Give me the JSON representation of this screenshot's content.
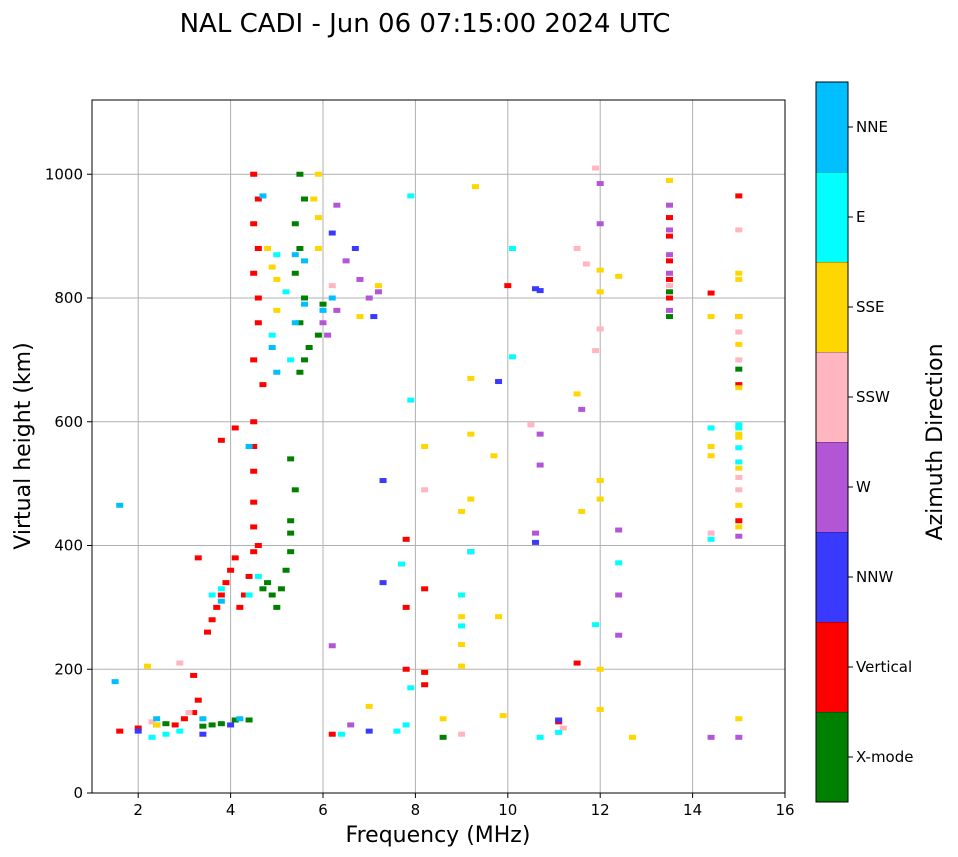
{
  "chart_data": {
    "type": "scatter",
    "title": "NAL CADI - Jun 06 07:15:00 2024 UTC",
    "xlabel": "Frequency (MHz)",
    "ylabel": "Virtual height (km)",
    "xlim": [
      1,
      16
    ],
    "ylim": [
      0,
      1120
    ],
    "xticks": [
      2,
      4,
      6,
      8,
      10,
      12,
      14,
      16
    ],
    "yticks": [
      0,
      200,
      400,
      600,
      800,
      1000
    ],
    "grid": true,
    "colorbar": {
      "title": "Azimuth Direction",
      "categories": [
        {
          "name": "X-mode",
          "color": "#008000"
        },
        {
          "name": "Vertical",
          "color": "#ff0000"
        },
        {
          "name": "NNW",
          "color": "#3a3aff"
        },
        {
          "name": "W",
          "color": "#b256d6"
        },
        {
          "name": "SSW",
          "color": "#ffb6c1"
        },
        {
          "name": "SSE",
          "color": "#ffd700"
        },
        {
          "name": "E",
          "color": "#00ffff"
        },
        {
          "name": "NNE",
          "color": "#00bfff"
        }
      ]
    },
    "series": [
      {
        "name": "X-mode",
        "points": [
          [
            2.4,
            110
          ],
          [
            2.6,
            112
          ],
          [
            3.4,
            108
          ],
          [
            3.6,
            110
          ],
          [
            3.8,
            112
          ],
          [
            4.1,
            118
          ],
          [
            4.4,
            118
          ],
          [
            4.7,
            330
          ],
          [
            4.8,
            340
          ],
          [
            4.9,
            320
          ],
          [
            5.0,
            300
          ],
          [
            5.1,
            330
          ],
          [
            5.2,
            360
          ],
          [
            5.3,
            390
          ],
          [
            5.3,
            420
          ],
          [
            5.3,
            440
          ],
          [
            5.4,
            490
          ],
          [
            5.3,
            540
          ],
          [
            5.5,
            680
          ],
          [
            5.6,
            700
          ],
          [
            5.7,
            720
          ],
          [
            5.5,
            760
          ],
          [
            5.6,
            800
          ],
          [
            5.4,
            840
          ],
          [
            5.5,
            880
          ],
          [
            5.4,
            920
          ],
          [
            5.6,
            960
          ],
          [
            5.5,
            1000
          ],
          [
            6.0,
            790
          ],
          [
            5.9,
            740
          ],
          [
            8.6,
            90
          ],
          [
            13.5,
            770
          ],
          [
            13.5,
            810
          ],
          [
            15.0,
            685
          ]
        ]
      },
      {
        "name": "Vertical",
        "points": [
          [
            1.6,
            100
          ],
          [
            2.0,
            105
          ],
          [
            2.8,
            110
          ],
          [
            3.0,
            120
          ],
          [
            3.2,
            130
          ],
          [
            3.3,
            150
          ],
          [
            3.2,
            190
          ],
          [
            3.5,
            260
          ],
          [
            3.6,
            280
          ],
          [
            3.7,
            300
          ],
          [
            3.8,
            320
          ],
          [
            3.9,
            340
          ],
          [
            4.0,
            360
          ],
          [
            4.1,
            380
          ],
          [
            4.2,
            300
          ],
          [
            4.3,
            320
          ],
          [
            4.4,
            350
          ],
          [
            4.5,
            390
          ],
          [
            4.6,
            400
          ],
          [
            4.5,
            430
          ],
          [
            4.5,
            470
          ],
          [
            4.5,
            520
          ],
          [
            4.5,
            560
          ],
          [
            4.5,
            600
          ],
          [
            4.7,
            660
          ],
          [
            4.5,
            700
          ],
          [
            4.6,
            760
          ],
          [
            4.6,
            800
          ],
          [
            4.5,
            840
          ],
          [
            4.6,
            880
          ],
          [
            4.5,
            920
          ],
          [
            4.6,
            960
          ],
          [
            4.5,
            1000
          ],
          [
            3.8,
            570
          ],
          [
            4.1,
            590
          ],
          [
            3.3,
            380
          ],
          [
            6.2,
            95
          ],
          [
            7.8,
            300
          ],
          [
            7.8,
            410
          ],
          [
            7.8,
            200
          ],
          [
            8.2,
            175
          ],
          [
            8.2,
            195
          ],
          [
            8.2,
            330
          ],
          [
            10.0,
            820
          ],
          [
            11.1,
            115
          ],
          [
            11.5,
            210
          ],
          [
            13.5,
            800
          ],
          [
            13.5,
            830
          ],
          [
            13.5,
            860
          ],
          [
            13.5,
            900
          ],
          [
            13.5,
            930
          ],
          [
            14.4,
            808
          ],
          [
            15.0,
            440
          ],
          [
            15.0,
            660
          ],
          [
            15.0,
            965
          ],
          [
            15.0,
            770
          ]
        ]
      },
      {
        "name": "NNW",
        "points": [
          [
            2.0,
            100
          ],
          [
            3.4,
            95
          ],
          [
            4.0,
            110
          ],
          [
            6.2,
            905
          ],
          [
            6.7,
            880
          ],
          [
            7.1,
            770
          ],
          [
            7.3,
            340
          ],
          [
            7.3,
            505
          ],
          [
            7.0,
            100
          ],
          [
            9.2,
            390
          ],
          [
            9.8,
            665
          ],
          [
            10.6,
            405
          ],
          [
            10.6,
            815
          ],
          [
            10.7,
            812
          ],
          [
            11.1,
            118
          ]
        ]
      },
      {
        "name": "W",
        "points": [
          [
            6.0,
            760
          ],
          [
            6.1,
            740
          ],
          [
            6.3,
            780
          ],
          [
            6.5,
            860
          ],
          [
            6.3,
            950
          ],
          [
            6.2,
            238
          ],
          [
            6.6,
            110
          ],
          [
            6.8,
            830
          ],
          [
            7.0,
            800
          ],
          [
            7.2,
            810
          ],
          [
            10.6,
            420
          ],
          [
            10.7,
            530
          ],
          [
            10.7,
            580
          ],
          [
            11.6,
            620
          ],
          [
            12.0,
            985
          ],
          [
            12.0,
            920
          ],
          [
            12.4,
            255
          ],
          [
            12.4,
            320
          ],
          [
            12.4,
            425
          ],
          [
            13.5,
            780
          ],
          [
            13.5,
            840
          ],
          [
            13.5,
            870
          ],
          [
            13.5,
            910
          ],
          [
            13.5,
            950
          ],
          [
            14.4,
            90
          ],
          [
            15.0,
            415
          ],
          [
            15.0,
            90
          ]
        ]
      },
      {
        "name": "SSW",
        "points": [
          [
            2.3,
            115
          ],
          [
            2.9,
            210
          ],
          [
            3.1,
            130
          ],
          [
            6.2,
            820
          ],
          [
            8.2,
            490
          ],
          [
            9.0,
            95
          ],
          [
            10.5,
            595
          ],
          [
            11.2,
            105
          ],
          [
            11.5,
            880
          ],
          [
            11.7,
            855
          ],
          [
            11.9,
            715
          ],
          [
            11.9,
            1010
          ],
          [
            12.0,
            750
          ],
          [
            13.5,
            820
          ],
          [
            14.4,
            420
          ],
          [
            15.0,
            490
          ],
          [
            15.0,
            910
          ],
          [
            15.0,
            745
          ],
          [
            15.0,
            700
          ],
          [
            15.0,
            510
          ]
        ]
      },
      {
        "name": "SSE",
        "points": [
          [
            2.2,
            205
          ],
          [
            2.4,
            110
          ],
          [
            4.8,
            880
          ],
          [
            4.9,
            850
          ],
          [
            5.0,
            830
          ],
          [
            5.0,
            780
          ],
          [
            5.9,
            1000
          ],
          [
            5.8,
            960
          ],
          [
            5.9,
            930
          ],
          [
            5.9,
            880
          ],
          [
            6.8,
            770
          ],
          [
            7.2,
            820
          ],
          [
            7.0,
            140
          ],
          [
            8.2,
            560
          ],
          [
            8.6,
            120
          ],
          [
            9.0,
            205
          ],
          [
            9.0,
            240
          ],
          [
            9.0,
            285
          ],
          [
            9.0,
            455
          ],
          [
            9.2,
            475
          ],
          [
            9.2,
            580
          ],
          [
            9.2,
            670
          ],
          [
            9.3,
            980
          ],
          [
            9.7,
            545
          ],
          [
            9.8,
            285
          ],
          [
            9.9,
            125
          ],
          [
            11.5,
            645
          ],
          [
            11.6,
            455
          ],
          [
            12.0,
            200
          ],
          [
            12.0,
            475
          ],
          [
            12.0,
            505
          ],
          [
            12.0,
            810
          ],
          [
            12.0,
            845
          ],
          [
            12.0,
            135
          ],
          [
            12.4,
            835
          ],
          [
            12.7,
            90
          ],
          [
            13.5,
            990
          ],
          [
            14.4,
            770
          ],
          [
            14.4,
            545
          ],
          [
            14.4,
            560
          ],
          [
            15.0,
            120
          ],
          [
            15.0,
            430
          ],
          [
            15.0,
            465
          ],
          [
            15.0,
            525
          ],
          [
            15.0,
            575
          ],
          [
            15.0,
            580
          ],
          [
            15.0,
            655
          ],
          [
            15.0,
            725
          ],
          [
            15.0,
            770
          ],
          [
            15.0,
            830
          ],
          [
            15.0,
            840
          ]
        ]
      },
      {
        "name": "E",
        "points": [
          [
            2.3,
            90
          ],
          [
            2.6,
            95
          ],
          [
            2.9,
            100
          ],
          [
            3.6,
            320
          ],
          [
            3.8,
            330
          ],
          [
            4.4,
            320
          ],
          [
            4.6,
            350
          ],
          [
            4.9,
            740
          ],
          [
            5.3,
            700
          ],
          [
            5.0,
            870
          ],
          [
            5.2,
            810
          ],
          [
            6.4,
            95
          ],
          [
            7.6,
            100
          ],
          [
            7.8,
            110
          ],
          [
            7.7,
            370
          ],
          [
            7.9,
            170
          ],
          [
            7.9,
            635
          ],
          [
            7.9,
            965
          ],
          [
            9.0,
            270
          ],
          [
            9.0,
            320
          ],
          [
            9.2,
            390
          ],
          [
            10.1,
            705
          ],
          [
            10.1,
            880
          ],
          [
            10.7,
            90
          ],
          [
            11.1,
            98
          ],
          [
            11.9,
            272
          ],
          [
            12.4,
            372
          ],
          [
            14.4,
            410
          ],
          [
            14.4,
            590
          ],
          [
            15.0,
            535
          ],
          [
            15.0,
            590
          ],
          [
            15.0,
            558
          ],
          [
            15.0,
            595
          ]
        ]
      },
      {
        "name": "NNE",
        "points": [
          [
            1.5,
            180
          ],
          [
            1.6,
            465
          ],
          [
            2.4,
            120
          ],
          [
            3.4,
            120
          ],
          [
            3.8,
            310
          ],
          [
            4.2,
            120
          ],
          [
            4.4,
            560
          ],
          [
            4.7,
            965
          ],
          [
            4.9,
            720
          ],
          [
            5.0,
            680
          ],
          [
            5.4,
            760
          ],
          [
            5.4,
            870
          ],
          [
            5.6,
            790
          ],
          [
            5.6,
            860
          ],
          [
            6.0,
            780
          ],
          [
            6.2,
            800
          ]
        ]
      }
    ]
  }
}
